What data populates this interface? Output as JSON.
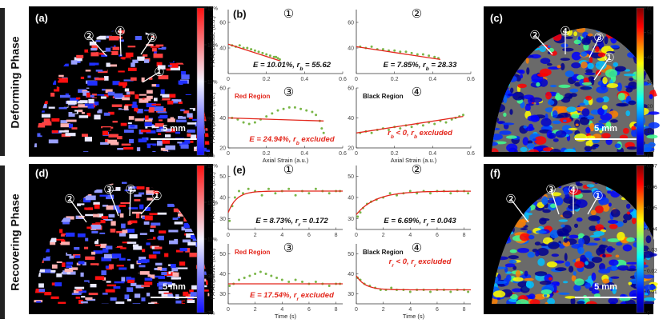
{
  "phases": {
    "deforming": "Deforming Phase",
    "recovering": "Recovering Phase"
  },
  "scalebar_label": "5 mm",
  "maps": {
    "a": {
      "label": "(a)",
      "cbar_ticks": [
        "15%",
        "13%",
        "11%",
        "9%",
        "7%"
      ],
      "markers": [
        "①",
        "②",
        "③",
        "④"
      ]
    },
    "c": {
      "label": "(c)",
      "cbar_ticks": [
        "60",
        "50",
        "40",
        "30",
        "20",
        "10",
        "0"
      ],
      "markers": [
        "①",
        "②",
        "③",
        "④"
      ]
    },
    "d": {
      "label": "(d)",
      "cbar_ticks": [
        "15%",
        "13%",
        "11%",
        "9%",
        "7%"
      ],
      "markers": [
        "①",
        "②",
        "③",
        "④"
      ]
    },
    "f": {
      "label": "(f)",
      "cbar_ticks": [
        "0.07",
        "0.06",
        "0.05",
        "0.04",
        "0.03",
        "0.02",
        "0.01",
        "0"
      ],
      "markers": [
        "①",
        "②",
        "③",
        "④"
      ]
    }
  },
  "colors": {
    "points": "#7ab648",
    "fit": "#e3261b",
    "annot": "#e3261b"
  },
  "chart_data": [
    {
      "panel": "(b)",
      "type": "scatter",
      "marker": "①",
      "region_label": "",
      "annotation": "E = 10.01%, r_b = 55.62",
      "ylabel": "PA Amplitude (a.u.)",
      "xlabel": "",
      "xlim": [
        0,
        0.6
      ],
      "ylim": [
        20,
        70
      ],
      "xticks": [
        0,
        0.2,
        0.4,
        0.6
      ],
      "yticks": [
        40,
        60
      ],
      "tick_labels_x": [
        "0",
        "0.2",
        "0.4",
        "0.6"
      ],
      "tick_labels_y": [
        "40",
        "60"
      ],
      "x": [
        0.02,
        0.04,
        0.06,
        0.08,
        0.1,
        0.12,
        0.14,
        0.16,
        0.18,
        0.2,
        0.22,
        0.24,
        0.25,
        0.26,
        0.27
      ],
      "y": [
        42,
        41,
        42,
        40,
        40,
        39,
        38,
        37,
        36,
        35,
        34,
        33,
        33,
        32,
        31
      ],
      "fit": [
        [
          0,
          43
        ],
        [
          0.27,
          30
        ]
      ]
    },
    {
      "panel": "",
      "type": "scatter",
      "marker": "②",
      "region_label": "",
      "annotation": "E = 7.85%, r_b = 28.33",
      "ylabel": "",
      "xlabel": "",
      "xlim": [
        0,
        0.6
      ],
      "ylim": [
        20,
        70
      ],
      "xticks": [
        0,
        0.2,
        0.4,
        0.6
      ],
      "yticks": [
        40,
        60
      ],
      "tick_labels_x": [
        "0",
        "0.2",
        "0.4",
        "0.6"
      ],
      "tick_labels_y": [
        "40",
        "60"
      ],
      "x": [
        0.02,
        0.05,
        0.08,
        0.11,
        0.14,
        0.17,
        0.2,
        0.23,
        0.26,
        0.29,
        0.32,
        0.35,
        0.38,
        0.41,
        0.43
      ],
      "y": [
        41,
        40,
        41,
        39,
        39,
        38,
        38,
        37,
        37,
        36,
        35,
        35,
        34,
        33,
        32
      ],
      "fit": [
        [
          0,
          41
        ],
        [
          0.44,
          31
        ]
      ]
    },
    {
      "panel": "",
      "type": "scatter",
      "marker": "③",
      "region_label": "Red Region",
      "annotation": "E = 24.94%, r_b excluded",
      "ylabel": "PA Amplitude (a.u.)",
      "xlabel": "Axial Strain (a.u.)",
      "xlim": [
        0,
        0.6
      ],
      "ylim": [
        20,
        60
      ],
      "xticks": [
        0,
        0.2,
        0.4,
        0.6
      ],
      "yticks": [
        20,
        40,
        60
      ],
      "tick_labels_x": [
        "0",
        "0.2",
        "0.4",
        "0.6"
      ],
      "tick_labels_y": [
        "20",
        "40",
        "60"
      ],
      "x": [
        0.02,
        0.05,
        0.08,
        0.11,
        0.14,
        0.17,
        0.2,
        0.23,
        0.26,
        0.29,
        0.32,
        0.35,
        0.38,
        0.41,
        0.44,
        0.46,
        0.48,
        0.49,
        0.5
      ],
      "y": [
        40,
        39,
        37,
        36,
        37,
        39,
        41,
        43,
        45,
        46,
        47,
        47,
        46,
        45,
        44,
        42,
        38,
        33,
        30
      ],
      "fit": [
        [
          0,
          40
        ],
        [
          0.5,
          38
        ]
      ]
    },
    {
      "panel": "",
      "type": "scatter",
      "marker": "④",
      "region_label": "Black Region",
      "annotation": "r_b < 0, r_b excluded",
      "ylabel": "",
      "xlabel": "Axial Strain (a.u.)",
      "xlim": [
        0,
        0.6
      ],
      "ylim": [
        20,
        60
      ],
      "xticks": [
        0,
        0.2,
        0.4,
        0.6
      ],
      "yticks": [
        20,
        40,
        60
      ],
      "tick_labels_x": [
        "0",
        "0.2",
        "0.4",
        "0.6"
      ],
      "tick_labels_y": [
        "20",
        "40",
        "60"
      ],
      "x": [
        0.02,
        0.05,
        0.08,
        0.11,
        0.14,
        0.17,
        0.2,
        0.23,
        0.26,
        0.29,
        0.32,
        0.35,
        0.38,
        0.41,
        0.44,
        0.47,
        0.5,
        0.52,
        0.54,
        0.56
      ],
      "y": [
        30,
        31,
        30,
        32,
        33,
        32,
        34,
        33,
        35,
        34,
        36,
        35,
        37,
        36,
        38,
        37,
        39,
        40,
        41,
        42
      ],
      "fit": [
        [
          0,
          30
        ],
        [
          0.56,
          41
        ]
      ]
    },
    {
      "panel": "(e)",
      "type": "scatter",
      "marker": "①",
      "region_label": "",
      "annotation": "E = 8.73%, r_r = 0.172",
      "ylabel": "PA Amplitude (a.u.)",
      "xlabel": "",
      "xlim": [
        0,
        8.5
      ],
      "ylim": [
        25,
        55
      ],
      "xticks": [
        0,
        2,
        4,
        6,
        8
      ],
      "yticks": [
        30,
        40,
        50
      ],
      "tick_labels_x": [
        "0",
        "2",
        "4",
        "6",
        "8"
      ],
      "tick_labels_y": [
        "30",
        "40",
        "50"
      ],
      "x": [
        0.1,
        0.3,
        0.5,
        0.8,
        1.1,
        1.5,
        2,
        2.5,
        3,
        3.5,
        4,
        4.5,
        5,
        5.5,
        6,
        6.5,
        7,
        7.5,
        8,
        8.3
      ],
      "y": [
        29,
        36,
        40,
        43,
        42,
        44,
        43,
        41,
        44,
        42,
        43,
        44,
        41,
        43,
        42,
        44,
        43,
        42,
        43,
        43
      ],
      "fit_model": "recovery",
      "fit_params": {
        "a": 43,
        "b": 10,
        "k": 1.6
      }
    },
    {
      "panel": "",
      "type": "scatter",
      "marker": "②",
      "region_label": "",
      "annotation": "E = 6.69%, r_r = 0.043",
      "ylabel": "",
      "xlabel": "",
      "xlim": [
        0,
        8.5
      ],
      "ylim": [
        25,
        55
      ],
      "xticks": [
        0,
        2,
        4,
        6,
        8
      ],
      "yticks": [
        30,
        40,
        50
      ],
      "tick_labels_x": [
        "0",
        "2",
        "4",
        "6",
        "8"
      ],
      "tick_labels_y": [
        "30",
        "40",
        "50"
      ],
      "x": [
        0.1,
        0.3,
        0.5,
        0.8,
        1.1,
        1.5,
        2,
        2.5,
        3,
        3.5,
        4,
        4.5,
        5,
        5.5,
        6,
        6.5,
        7,
        7.5,
        8,
        8.3
      ],
      "y": [
        31,
        33,
        35,
        37,
        38,
        39,
        40,
        42,
        41,
        42,
        43,
        42,
        43,
        42,
        43,
        43,
        42,
        43,
        43,
        42
      ],
      "fit_model": "recovery",
      "fit_params": {
        "a": 43,
        "b": 11,
        "k": 0.7
      }
    },
    {
      "panel": "",
      "type": "scatter",
      "marker": "③",
      "region_label": "Red Region",
      "annotation": "E = 17.54%, r_r excluded",
      "ylabel": "PA Amplitude (a.u.)",
      "xlabel": "Time (s)",
      "xlim": [
        0,
        8.5
      ],
      "ylim": [
        25,
        55
      ],
      "xticks": [
        0,
        2,
        4,
        6,
        8
      ],
      "yticks": [
        30,
        40,
        50
      ],
      "tick_labels_x": [
        "0",
        "2",
        "4",
        "6",
        "8"
      ],
      "tick_labels_y": [
        "30",
        "40",
        "50"
      ],
      "x": [
        0.1,
        0.4,
        0.8,
        1.2,
        1.6,
        2,
        2.4,
        2.8,
        3.2,
        3.6,
        4,
        4.5,
        5,
        5.5,
        6,
        6.5,
        7,
        7.5,
        8,
        8.3
      ],
      "y": [
        34,
        35,
        37,
        38,
        39,
        40,
        41,
        40,
        39,
        38,
        37,
        36,
        37,
        36,
        35,
        36,
        35,
        34,
        35,
        35
      ],
      "fit": [
        [
          0,
          35
        ],
        [
          8.5,
          35
        ]
      ]
    },
    {
      "panel": "",
      "type": "scatter",
      "marker": "④",
      "region_label": "Black Region",
      "annotation": "r_r < 0, r_r excluded",
      "ylabel": "",
      "xlabel": "Time (s)",
      "xlim": [
        0,
        8.5
      ],
      "ylim": [
        25,
        55
      ],
      "xticks": [
        0,
        2,
        4,
        6,
        8
      ],
      "yticks": [
        30,
        40,
        50
      ],
      "tick_labels_x": [
        "0",
        "2",
        "4",
        "6",
        "8"
      ],
      "tick_labels_y": [
        "30",
        "40",
        "50"
      ],
      "x": [
        0.1,
        0.3,
        0.6,
        1,
        1.4,
        1.8,
        2.2,
        2.6,
        3,
        3.5,
        4,
        4.5,
        5,
        5.5,
        6,
        6.5,
        7,
        7.5,
        8,
        8.3
      ],
      "y": [
        38,
        37,
        35,
        34,
        33,
        32,
        32,
        33,
        32,
        32,
        31,
        32,
        32,
        31,
        32,
        32,
        31,
        32,
        32,
        31
      ],
      "fit_model": "decay",
      "fit_params": {
        "a": 32,
        "b": 7,
        "k": 1.5
      }
    }
  ]
}
